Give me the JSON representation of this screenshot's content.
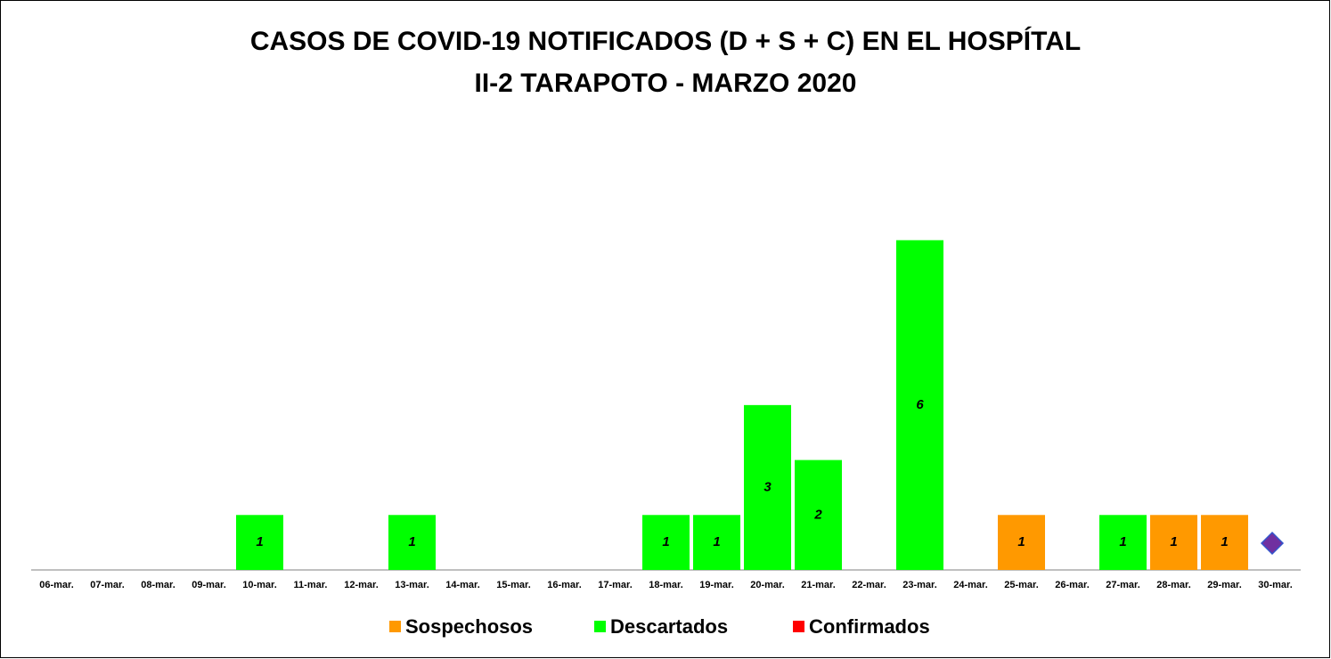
{
  "chart_data": {
    "type": "bar",
    "stacked": true,
    "title": [
      "CASOS DE COVID-19 NOTIFICADOS (D + S + C) EN EL HOSPÍTAL",
      "II-2 TARAPOTO - MARZO 2020"
    ],
    "categories": [
      "06-mar.",
      "07-mar.",
      "08-mar.",
      "09-mar.",
      "10-mar.",
      "11-mar.",
      "12-mar.",
      "13-mar.",
      "14-mar.",
      "15-mar.",
      "16-mar.",
      "17-mar.",
      "18-mar.",
      "19-mar.",
      "20-mar.",
      "21-mar.",
      "22-mar.",
      "23-mar.",
      "24-mar.",
      "25-mar.",
      "26-mar.",
      "27-mar.",
      "28-mar.",
      "29-mar.",
      "30-mar."
    ],
    "series": [
      {
        "name": "Sospechosos",
        "color": "#ff9900",
        "values": [
          null,
          null,
          null,
          null,
          null,
          null,
          null,
          null,
          null,
          null,
          null,
          null,
          null,
          null,
          null,
          null,
          null,
          null,
          null,
          1,
          null,
          null,
          1,
          1,
          null
        ]
      },
      {
        "name": "Descartados",
        "color": "#00ff00",
        "values": [
          null,
          null,
          null,
          null,
          1,
          null,
          null,
          1,
          null,
          null,
          null,
          null,
          1,
          1,
          3,
          2,
          null,
          6,
          null,
          null,
          null,
          1,
          null,
          null,
          null
        ]
      },
      {
        "name": "Confirmados",
        "color": "#ff0000",
        "values": [
          null,
          null,
          null,
          null,
          null,
          null,
          null,
          null,
          null,
          null,
          null,
          null,
          null,
          null,
          null,
          null,
          null,
          null,
          null,
          null,
          null,
          null,
          null,
          null,
          null
        ]
      }
    ],
    "ylim": [
      0,
      7
    ],
    "grid": false,
    "legend": "bottom"
  }
}
